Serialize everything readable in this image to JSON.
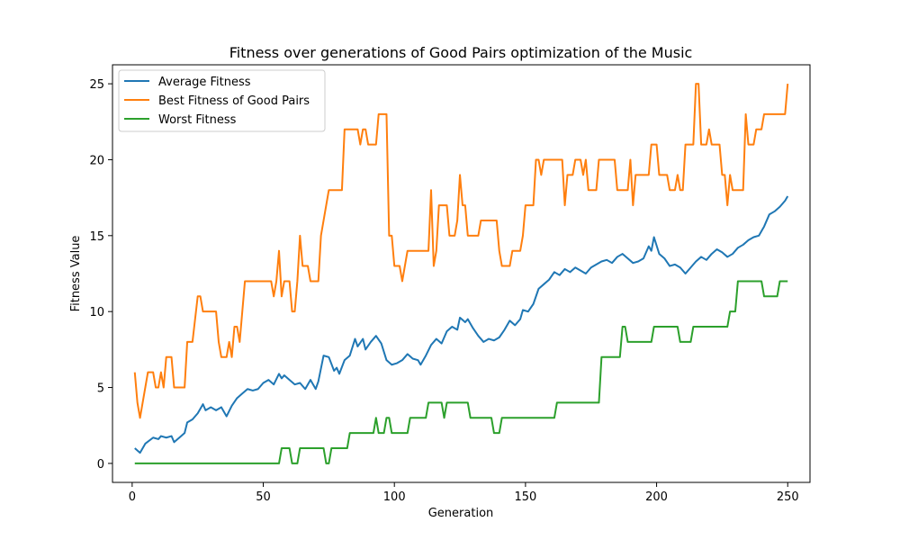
{
  "chart_data": {
    "type": "line",
    "title": "Fitness over generations of Good Pairs optimization of the Music",
    "xlabel": "Generation",
    "ylabel": "Fitness Value",
    "xlim": [
      -7.5,
      258.5
    ],
    "ylim": [
      -1.25,
      26.25
    ],
    "xticks": [
      0,
      50,
      100,
      150,
      200,
      250
    ],
    "yticks": [
      0,
      5,
      10,
      15,
      20,
      25
    ],
    "grid": false,
    "legend_position": "top-left",
    "series": [
      {
        "name": "Average Fitness",
        "color": "#1f77b4",
        "points": [
          [
            1,
            1.0
          ],
          [
            3,
            0.7
          ],
          [
            5,
            1.3
          ],
          [
            8,
            1.7
          ],
          [
            10,
            1.6
          ],
          [
            11,
            1.8
          ],
          [
            13,
            1.7
          ],
          [
            15,
            1.8
          ],
          [
            16,
            1.4
          ],
          [
            18,
            1.7
          ],
          [
            20,
            2.0
          ],
          [
            21,
            2.7
          ],
          [
            23,
            2.9
          ],
          [
            25,
            3.3
          ],
          [
            27,
            3.9
          ],
          [
            28,
            3.5
          ],
          [
            30,
            3.7
          ],
          [
            32,
            3.5
          ],
          [
            34,
            3.7
          ],
          [
            36,
            3.1
          ],
          [
            38,
            3.8
          ],
          [
            40,
            4.3
          ],
          [
            42,
            4.6
          ],
          [
            44,
            4.9
          ],
          [
            46,
            4.8
          ],
          [
            48,
            4.9
          ],
          [
            50,
            5.3
          ],
          [
            52,
            5.5
          ],
          [
            54,
            5.2
          ],
          [
            56,
            5.9
          ],
          [
            57,
            5.6
          ],
          [
            58,
            5.8
          ],
          [
            60,
            5.5
          ],
          [
            62,
            5.2
          ],
          [
            64,
            5.3
          ],
          [
            66,
            4.9
          ],
          [
            68,
            5.5
          ],
          [
            70,
            4.9
          ],
          [
            71,
            5.4
          ],
          [
            73,
            7.1
          ],
          [
            75,
            7.0
          ],
          [
            77,
            6.1
          ],
          [
            78,
            6.3
          ],
          [
            79,
            5.9
          ],
          [
            81,
            6.8
          ],
          [
            83,
            7.1
          ],
          [
            85,
            8.2
          ],
          [
            86,
            7.7
          ],
          [
            88,
            8.2
          ],
          [
            89,
            7.5
          ],
          [
            91,
            8.0
          ],
          [
            93,
            8.4
          ],
          [
            95,
            7.9
          ],
          [
            97,
            6.8
          ],
          [
            99,
            6.5
          ],
          [
            101,
            6.6
          ],
          [
            103,
            6.8
          ],
          [
            105,
            7.2
          ],
          [
            107,
            6.9
          ],
          [
            109,
            6.8
          ],
          [
            110,
            6.5
          ],
          [
            112,
            7.1
          ],
          [
            114,
            7.8
          ],
          [
            116,
            8.2
          ],
          [
            118,
            7.9
          ],
          [
            120,
            8.7
          ],
          [
            122,
            9.0
          ],
          [
            124,
            8.8
          ],
          [
            125,
            9.6
          ],
          [
            127,
            9.3
          ],
          [
            128,
            9.5
          ],
          [
            130,
            8.9
          ],
          [
            132,
            8.4
          ],
          [
            134,
            8.0
          ],
          [
            136,
            8.2
          ],
          [
            138,
            8.1
          ],
          [
            140,
            8.3
          ],
          [
            142,
            8.8
          ],
          [
            144,
            9.4
          ],
          [
            146,
            9.1
          ],
          [
            148,
            9.5
          ],
          [
            149,
            10.1
          ],
          [
            151,
            10.0
          ],
          [
            153,
            10.5
          ],
          [
            155,
            11.5
          ],
          [
            157,
            11.8
          ],
          [
            159,
            12.1
          ],
          [
            161,
            12.6
          ],
          [
            163,
            12.4
          ],
          [
            165,
            12.8
          ],
          [
            167,
            12.6
          ],
          [
            169,
            12.9
          ],
          [
            171,
            12.7
          ],
          [
            173,
            12.5
          ],
          [
            175,
            12.9
          ],
          [
            177,
            13.1
          ],
          [
            179,
            13.3
          ],
          [
            181,
            13.4
          ],
          [
            183,
            13.2
          ],
          [
            185,
            13.6
          ],
          [
            187,
            13.8
          ],
          [
            189,
            13.5
          ],
          [
            191,
            13.2
          ],
          [
            193,
            13.3
          ],
          [
            195,
            13.5
          ],
          [
            197,
            14.3
          ],
          [
            198,
            14.0
          ],
          [
            199,
            14.9
          ],
          [
            201,
            13.8
          ],
          [
            203,
            13.5
          ],
          [
            205,
            13.0
          ],
          [
            207,
            13.1
          ],
          [
            209,
            12.9
          ],
          [
            211,
            12.5
          ],
          [
            213,
            12.9
          ],
          [
            215,
            13.3
          ],
          [
            217,
            13.6
          ],
          [
            219,
            13.4
          ],
          [
            221,
            13.8
          ],
          [
            223,
            14.1
          ],
          [
            225,
            13.9
          ],
          [
            227,
            13.6
          ],
          [
            229,
            13.8
          ],
          [
            231,
            14.2
          ],
          [
            233,
            14.4
          ],
          [
            235,
            14.7
          ],
          [
            237,
            14.9
          ],
          [
            239,
            15.0
          ],
          [
            241,
            15.6
          ],
          [
            243,
            16.4
          ],
          [
            245,
            16.6
          ],
          [
            247,
            16.9
          ],
          [
            249,
            17.3
          ],
          [
            250,
            17.6
          ]
        ]
      },
      {
        "name": "Best Fitness of Good Pairs",
        "color": "#ff7f0e",
        "points": [
          [
            1,
            6
          ],
          [
            2,
            4
          ],
          [
            3,
            3
          ],
          [
            5,
            5
          ],
          [
            6,
            6
          ],
          [
            8,
            6
          ],
          [
            9,
            5
          ],
          [
            10,
            5
          ],
          [
            11,
            6
          ],
          [
            12,
            5
          ],
          [
            13,
            7
          ],
          [
            15,
            7
          ],
          [
            16,
            5
          ],
          [
            20,
            5
          ],
          [
            21,
            8
          ],
          [
            23,
            8
          ],
          [
            25,
            11
          ],
          [
            26,
            11
          ],
          [
            27,
            10
          ],
          [
            32,
            10
          ],
          [
            33,
            8
          ],
          [
            34,
            7
          ],
          [
            36,
            7
          ],
          [
            37,
            8
          ],
          [
            38,
            7
          ],
          [
            39,
            9
          ],
          [
            40,
            9
          ],
          [
            41,
            8
          ],
          [
            43,
            12
          ],
          [
            53,
            12
          ],
          [
            54,
            11
          ],
          [
            55,
            12
          ],
          [
            56,
            14
          ],
          [
            57,
            11
          ],
          [
            58,
            12
          ],
          [
            60,
            12
          ],
          [
            61,
            10
          ],
          [
            62,
            10
          ],
          [
            63,
            12
          ],
          [
            64,
            15
          ],
          [
            65,
            13
          ],
          [
            67,
            13
          ],
          [
            68,
            12
          ],
          [
            71,
            12
          ],
          [
            72,
            15
          ],
          [
            74,
            17
          ],
          [
            75,
            18
          ],
          [
            80,
            18
          ],
          [
            81,
            22
          ],
          [
            86,
            22
          ],
          [
            87,
            21
          ],
          [
            88,
            22
          ],
          [
            89,
            22
          ],
          [
            90,
            21
          ],
          [
            93,
            21
          ],
          [
            94,
            23
          ],
          [
            97,
            23
          ],
          [
            98,
            15
          ],
          [
            99,
            15
          ],
          [
            100,
            13
          ],
          [
            102,
            13
          ],
          [
            103,
            12
          ],
          [
            105,
            14
          ],
          [
            113,
            14
          ],
          [
            114,
            18
          ],
          [
            115,
            13
          ],
          [
            116,
            14
          ],
          [
            117,
            17
          ],
          [
            120,
            17
          ],
          [
            121,
            15
          ],
          [
            123,
            15
          ],
          [
            124,
            16
          ],
          [
            125,
            19
          ],
          [
            126,
            17
          ],
          [
            127,
            17
          ],
          [
            128,
            15
          ],
          [
            132,
            15
          ],
          [
            133,
            16
          ],
          [
            139,
            16
          ],
          [
            140,
            14
          ],
          [
            141,
            13
          ],
          [
            144,
            13
          ],
          [
            145,
            14
          ],
          [
            148,
            14
          ],
          [
            149,
            15
          ],
          [
            150,
            17
          ],
          [
            153,
            17
          ],
          [
            154,
            20
          ],
          [
            155,
            20
          ],
          [
            156,
            19
          ],
          [
            157,
            20
          ],
          [
            164,
            20
          ],
          [
            165,
            17
          ],
          [
            166,
            19
          ],
          [
            168,
            19
          ],
          [
            169,
            20
          ],
          [
            171,
            20
          ],
          [
            172,
            19
          ],
          [
            173,
            20
          ],
          [
            174,
            18
          ],
          [
            177,
            18
          ],
          [
            178,
            20
          ],
          [
            184,
            20
          ],
          [
            185,
            18
          ],
          [
            189,
            18
          ],
          [
            190,
            20
          ],
          [
            191,
            17
          ],
          [
            192,
            19
          ],
          [
            197,
            19
          ],
          [
            198,
            21
          ],
          [
            200,
            21
          ],
          [
            201,
            19
          ],
          [
            204,
            19
          ],
          [
            205,
            18
          ],
          [
            207,
            18
          ],
          [
            208,
            19
          ],
          [
            209,
            18
          ],
          [
            210,
            18
          ],
          [
            211,
            21
          ],
          [
            214,
            21
          ],
          [
            215,
            25
          ],
          [
            216,
            25
          ],
          [
            217,
            21
          ],
          [
            219,
            21
          ],
          [
            220,
            22
          ],
          [
            221,
            21
          ],
          [
            224,
            21
          ],
          [
            225,
            19
          ],
          [
            226,
            19
          ],
          [
            227,
            17
          ],
          [
            228,
            19
          ],
          [
            229,
            18
          ],
          [
            233,
            18
          ],
          [
            234,
            23
          ],
          [
            235,
            21
          ],
          [
            237,
            21
          ],
          [
            238,
            22
          ],
          [
            240,
            22
          ],
          [
            241,
            23
          ],
          [
            249,
            23
          ],
          [
            250,
            25
          ]
        ]
      },
      {
        "name": "Worst Fitness",
        "color": "#2ca02c",
        "points": [
          [
            1,
            0
          ],
          [
            56,
            0
          ],
          [
            57,
            1
          ],
          [
            60,
            1
          ],
          [
            61,
            0
          ],
          [
            63,
            0
          ],
          [
            64,
            1
          ],
          [
            73,
            1
          ],
          [
            74,
            0
          ],
          [
            75,
            0
          ],
          [
            76,
            1
          ],
          [
            82,
            1
          ],
          [
            83,
            2
          ],
          [
            92,
            2
          ],
          [
            93,
            3
          ],
          [
            94,
            2
          ],
          [
            96,
            2
          ],
          [
            97,
            3
          ],
          [
            98,
            3
          ],
          [
            99,
            2
          ],
          [
            105,
            2
          ],
          [
            106,
            3
          ],
          [
            112,
            3
          ],
          [
            113,
            4
          ],
          [
            118,
            4
          ],
          [
            119,
            3
          ],
          [
            120,
            4
          ],
          [
            128,
            4
          ],
          [
            129,
            3
          ],
          [
            137,
            3
          ],
          [
            138,
            2
          ],
          [
            140,
            2
          ],
          [
            141,
            3
          ],
          [
            161,
            3
          ],
          [
            162,
            4
          ],
          [
            178,
            4
          ],
          [
            179,
            7
          ],
          [
            186,
            7
          ],
          [
            187,
            9
          ],
          [
            188,
            9
          ],
          [
            189,
            8
          ],
          [
            198,
            8
          ],
          [
            199,
            9
          ],
          [
            208,
            9
          ],
          [
            209,
            8
          ],
          [
            213,
            8
          ],
          [
            214,
            9
          ],
          [
            227,
            9
          ],
          [
            228,
            10
          ],
          [
            230,
            10
          ],
          [
            231,
            12
          ],
          [
            240,
            12
          ],
          [
            241,
            11
          ],
          [
            246,
            11
          ],
          [
            247,
            12
          ],
          [
            250,
            12
          ]
        ]
      }
    ]
  }
}
